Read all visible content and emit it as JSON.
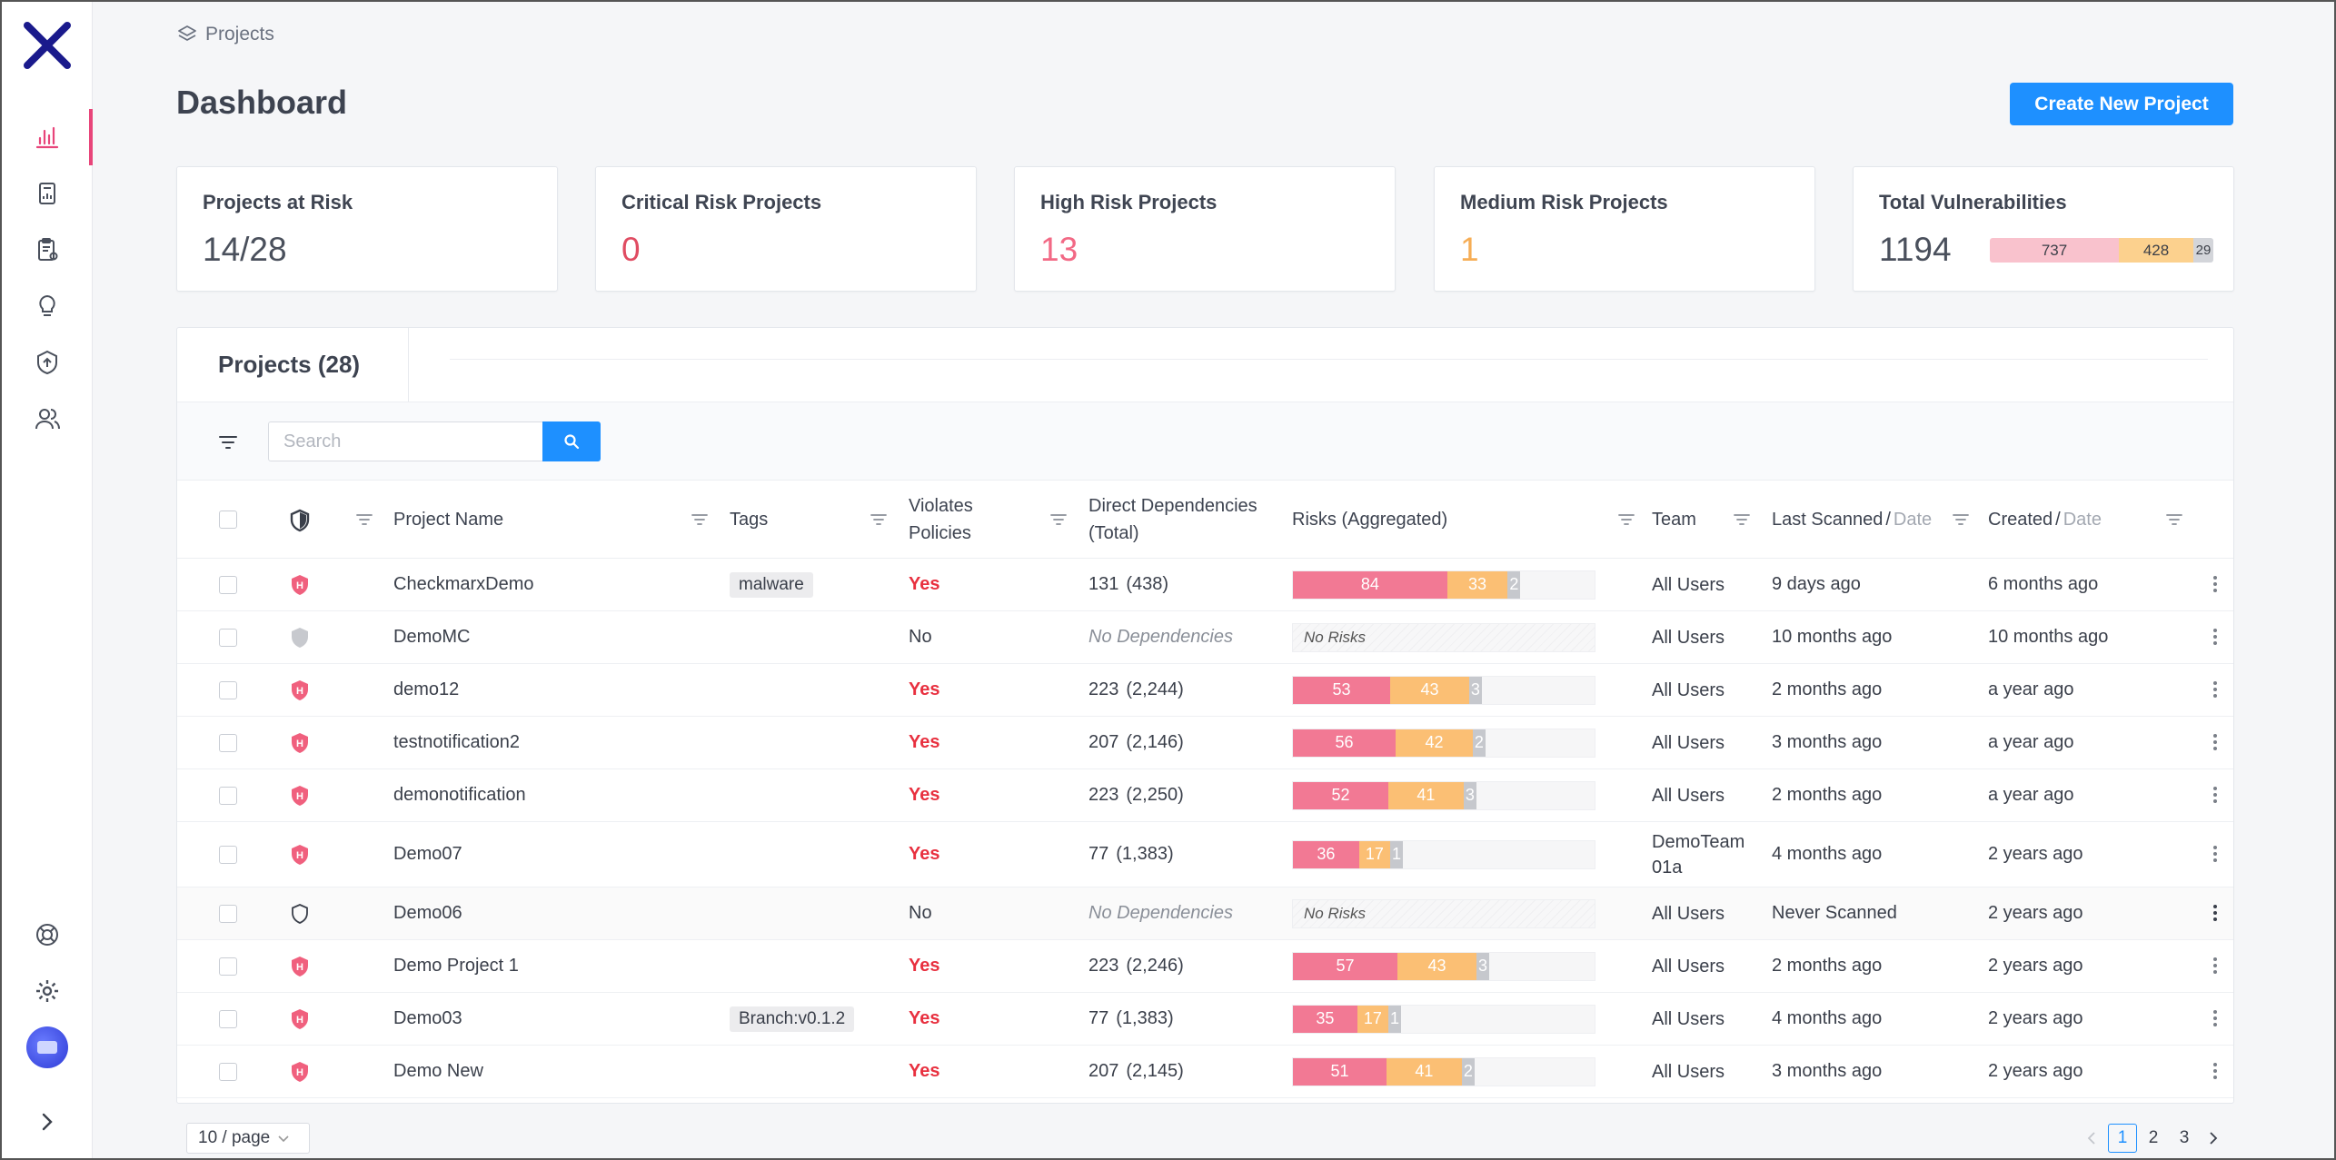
{
  "breadcrumb": {
    "label": "Projects",
    "icon": "layers-icon"
  },
  "header": {
    "title": "Dashboard",
    "create_button": "Create New Project"
  },
  "sidebar": {
    "items": [
      {
        "icon": "bar-chart-icon",
        "active": true
      },
      {
        "icon": "report-icon"
      },
      {
        "icon": "clipboard-settings-icon"
      },
      {
        "icon": "lightbulb-icon"
      },
      {
        "icon": "shield-upload-icon"
      },
      {
        "icon": "users-icon"
      }
    ],
    "bottom": [
      {
        "icon": "lifebuoy-icon"
      },
      {
        "icon": "gear-icon"
      },
      {
        "icon": "avatar"
      },
      {
        "icon": "chevron-right-icon"
      }
    ]
  },
  "stats": [
    {
      "label": "Projects at Risk",
      "value": "14/28",
      "color": "#4a505c"
    },
    {
      "label": "Critical Risk Projects",
      "value": "0",
      "color": "#e04c62"
    },
    {
      "label": "High Risk Projects",
      "value": "13",
      "color": "#f26985"
    },
    {
      "label": "Medium Risk Projects",
      "value": "1",
      "color": "#f6ad55"
    },
    {
      "label": "Total Vulnerabilities",
      "value": "1194",
      "breakdown": {
        "high": "737",
        "medium": "428",
        "low": "29"
      }
    }
  ],
  "projects": {
    "tab_label": "Projects (28)",
    "search_placeholder": "Search",
    "columns": {
      "name": "Project Name",
      "tags": "Tags",
      "violates": "Violates Policies",
      "deps_line1": "Direct Dependencies",
      "deps_line2": "(Total)",
      "risks": "Risks (Aggregated)",
      "team": "Team",
      "last_scanned": "Last Scanned",
      "last_scanned_sub": "Date",
      "created": "Created",
      "created_sub": "Date",
      "slash": "/"
    },
    "no_risks": "No Risks",
    "rows": [
      {
        "status": "high",
        "name": "CheckmarxDemo",
        "tag": "malware",
        "violates": "Yes",
        "deps": "131",
        "deps_total": "(438)",
        "risk": {
          "h": 84,
          "m": 33,
          "l": 2
        },
        "team": "All Users",
        "last_scanned": "9 days ago",
        "created": "6 months ago"
      },
      {
        "status": "none",
        "name": "DemoMC",
        "tag": "",
        "violates": "No",
        "deps": "No Dependencies",
        "deps_total": "",
        "risk": null,
        "team": "All Users",
        "last_scanned": "10 months ago",
        "created": "10 months ago"
      },
      {
        "status": "high",
        "name": "demo12",
        "tag": "",
        "violates": "Yes",
        "deps": "223",
        "deps_total": "(2,244)",
        "risk": {
          "h": 53,
          "m": 43,
          "l": 3
        },
        "team": "All Users",
        "last_scanned": "2 months ago",
        "created": "a year ago"
      },
      {
        "status": "high",
        "name": "testnotification2",
        "tag": "",
        "violates": "Yes",
        "deps": "207",
        "deps_total": "(2,146)",
        "risk": {
          "h": 56,
          "m": 42,
          "l": 2
        },
        "team": "All Users",
        "last_scanned": "3 months ago",
        "created": "a year ago"
      },
      {
        "status": "high",
        "name": "demonotification",
        "tag": "",
        "violates": "Yes",
        "deps": "223",
        "deps_total": "(2,250)",
        "risk": {
          "h": 52,
          "m": 41,
          "l": 3
        },
        "team": "All Users",
        "last_scanned": "2 months ago",
        "created": "a year ago"
      },
      {
        "status": "high",
        "name": "Demo07",
        "tag": "",
        "violates": "Yes",
        "deps": "77",
        "deps_total": "(1,383)",
        "risk": {
          "h": 36,
          "m": 17,
          "l": 1
        },
        "team": "DemoTeam 01a",
        "last_scanned": "4 months ago",
        "created": "2 years ago"
      },
      {
        "status": "outline",
        "name": "Demo06",
        "tag": "",
        "violates": "No",
        "deps": "No Dependencies",
        "deps_total": "",
        "risk": null,
        "team": "All Users",
        "last_scanned": "Never Scanned",
        "created": "2 years ago",
        "highlight": true
      },
      {
        "status": "high",
        "name": "Demo Project 1",
        "tag": "",
        "violates": "Yes",
        "deps": "223",
        "deps_total": "(2,246)",
        "risk": {
          "h": 57,
          "m": 43,
          "l": 3
        },
        "team": "All Users",
        "last_scanned": "2 months ago",
        "created": "2 years ago"
      },
      {
        "status": "high",
        "name": "Demo03",
        "tag": "Branch:v0.1.2",
        "violates": "Yes",
        "deps": "77",
        "deps_total": "(1,383)",
        "risk": {
          "h": 35,
          "m": 17,
          "l": 1
        },
        "team": "All Users",
        "last_scanned": "4 months ago",
        "created": "2 years ago"
      },
      {
        "status": "high",
        "name": "Demo New",
        "tag": "",
        "violates": "Yes",
        "deps": "207",
        "deps_total": "(2,145)",
        "risk": {
          "h": 51,
          "m": 41,
          "l": 2
        },
        "team": "All Users",
        "last_scanned": "3 months ago",
        "created": "2 years ago"
      }
    ]
  },
  "pagination": {
    "page_size": "10 / page",
    "pages": [
      "1",
      "2",
      "3"
    ],
    "current": "1"
  },
  "colors": {
    "accent": "#1e90ff",
    "high": "#f27994",
    "medium": "#fbbf74",
    "low": "#c6c8cd",
    "yes": "#e8303f",
    "active_nav": "#e8457a"
  }
}
